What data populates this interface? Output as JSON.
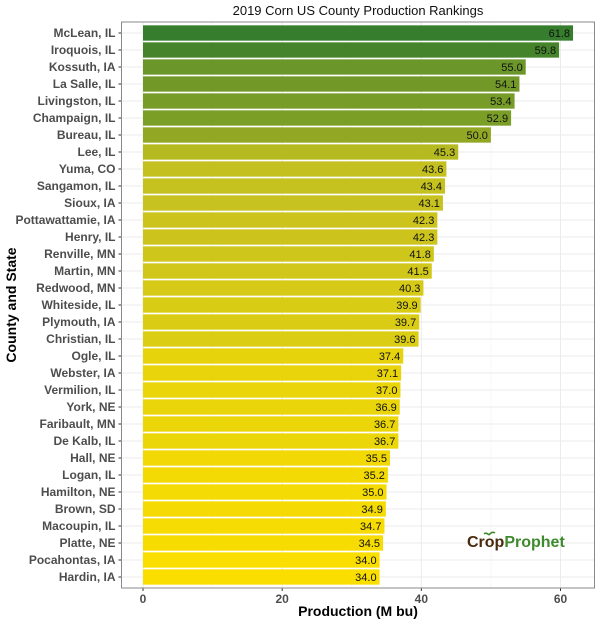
{
  "chart_data": {
    "type": "bar",
    "orientation": "horizontal",
    "title": "2019 Corn US County Production Rankings",
    "xlabel": "Production (M bu)",
    "ylabel": "County and State",
    "xlim": [
      0,
      63
    ],
    "xticks": [
      0,
      20,
      40,
      60
    ],
    "grid": true,
    "color_scale": {
      "low": "#fade00",
      "mid": "#c8c21f",
      "high": "#367d2e"
    },
    "categories": [
      "McLean, IL",
      "Iroquois, IL",
      "Kossuth, IA",
      "La Salle, IL",
      "Livingston, IL",
      "Champaign, IL",
      "Bureau, IL",
      "Lee, IL",
      "Yuma, CO",
      "Sangamon, IL",
      "Sioux, IA",
      "Pottawattamie, IA",
      "Henry, IL",
      "Renville, MN",
      "Martin, MN",
      "Redwood, MN",
      "Whiteside, IL",
      "Plymouth, IA",
      "Christian, IL",
      "Ogle, IL",
      "Webster, IA",
      "Vermilion, IL",
      "York, NE",
      "Faribault, MN",
      "De Kalb, IL",
      "Hall, NE",
      "Logan, IL",
      "Hamilton, NE",
      "Brown, SD",
      "Macoupin, IL",
      "Platte, NE",
      "Pocahontas, IA",
      "Hardin, IA"
    ],
    "values": [
      61.8,
      59.8,
      55.0,
      54.1,
      53.4,
      52.9,
      50.0,
      45.3,
      43.6,
      43.4,
      43.1,
      42.3,
      42.3,
      41.8,
      41.5,
      40.3,
      39.9,
      39.7,
      39.6,
      37.4,
      37.1,
      37.0,
      36.9,
      36.7,
      36.7,
      35.5,
      35.2,
      35.0,
      34.9,
      34.7,
      34.5,
      34.0,
      34.0
    ]
  },
  "logo": {
    "text_part1": "Crop",
    "text_part2": "Prophet",
    "color1": "#4a2a0e",
    "color2": "#3f8a2e"
  }
}
